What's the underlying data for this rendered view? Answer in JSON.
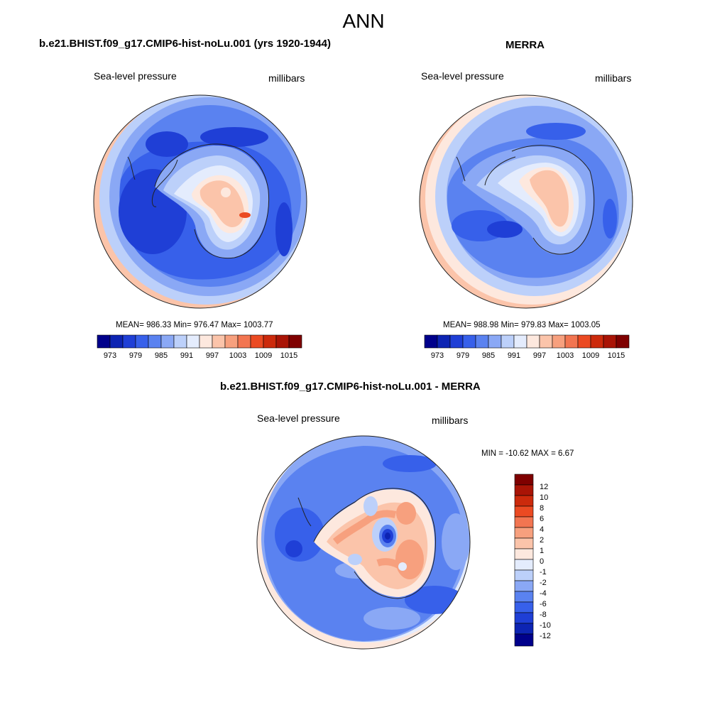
{
  "season": "ANN",
  "colors": {
    "c0": "#00008b",
    "c1": "#0d24b3",
    "c2": "#1f3fd6",
    "c3": "#3760ea",
    "c4": "#5a82f0",
    "c5": "#8aa8f5",
    "c6": "#bcd0fa",
    "c7": "#e4ecfd",
    "c8": "#fde8de",
    "c9": "#fbc4aa",
    "c10": "#f7a07e",
    "c11": "#f27551",
    "c12": "#eb4a22",
    "c13": "#cc2a0c",
    "c14": "#a91406",
    "c15": "#7f0000"
  },
  "panels": [
    {
      "title": "b.e21.BHIST.f09_g17.CMIP6-hist-noLu.001 (yrs 1920-1944)",
      "field": "Sea-level pressure",
      "units": "millibars",
      "stats": "MEAN= 986.33  Min= 976.47  Max= 1003.77",
      "colorbar_labels": [
        "973",
        "979",
        "985",
        "991",
        "997",
        "1003",
        "1009",
        "1015"
      ]
    },
    {
      "title": "MERRA",
      "field": "Sea-level pressure",
      "units": "millibars",
      "stats": "MEAN= 988.98  Min= 979.83  Max= 1003.05",
      "colorbar_labels": [
        "973",
        "979",
        "985",
        "991",
        "997",
        "1003",
        "1009",
        "1015"
      ]
    },
    {
      "title": "b.e21.BHIST.f09_g17.CMIP6-hist-noLu.001 - MERRA",
      "field": "Sea-level pressure",
      "units": "millibars",
      "stats": "MIN = -10.62 MAX =   6.67",
      "colorbar_labels": [
        "12",
        "10",
        "8",
        "6",
        "4",
        "2",
        "1",
        "0",
        "-1",
        "-2",
        "-4",
        "-6",
        "-8",
        "-10",
        "-12"
      ]
    }
  ]
}
